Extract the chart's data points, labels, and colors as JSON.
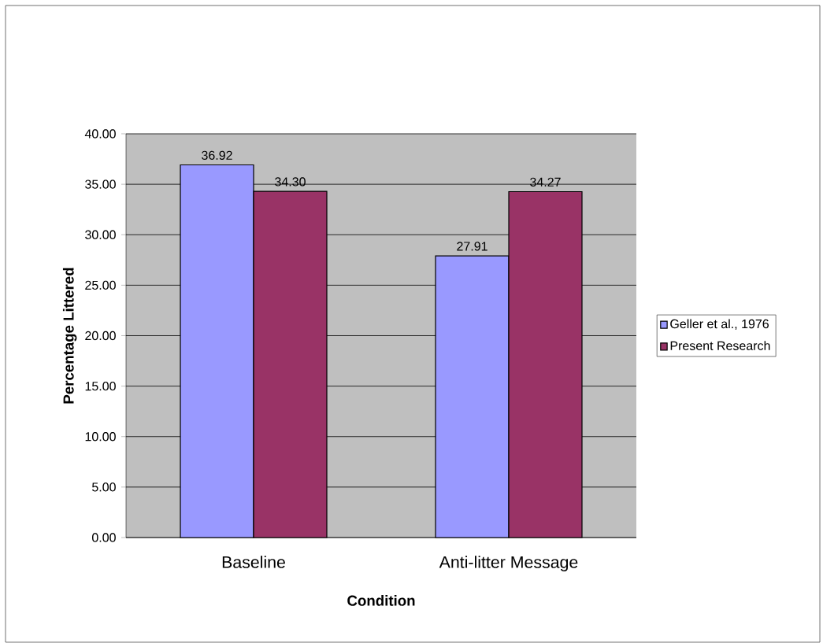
{
  "chart_data": {
    "type": "bar",
    "xlabel": "Condition",
    "ylabel": "Percentage Littered",
    "categories": [
      "Baseline",
      "Anti-litter Message"
    ],
    "series": [
      {
        "name": "Geller et al., 1976",
        "color": "#9999ff",
        "values": [
          36.92,
          27.91
        ],
        "value_labels": [
          "36.92",
          "27.91"
        ]
      },
      {
        "name": "Present Research",
        "color": "#993366",
        "values": [
          34.3,
          34.27
        ],
        "value_labels": [
          "34.30",
          "34.27"
        ]
      }
    ],
    "ylim": [
      0,
      40
    ],
    "yticks": [
      {
        "value": 0,
        "label": "0.00"
      },
      {
        "value": 5,
        "label": "5.00"
      },
      {
        "value": 10,
        "label": "10.00"
      },
      {
        "value": 15,
        "label": "15.00"
      },
      {
        "value": 20,
        "label": "20.00"
      },
      {
        "value": 25,
        "label": "25.00"
      },
      {
        "value": 30,
        "label": "30.00"
      },
      {
        "value": 35,
        "label": "35.00"
      },
      {
        "value": 40,
        "label": "40.00"
      }
    ],
    "grid": "y",
    "legend": "right"
  }
}
